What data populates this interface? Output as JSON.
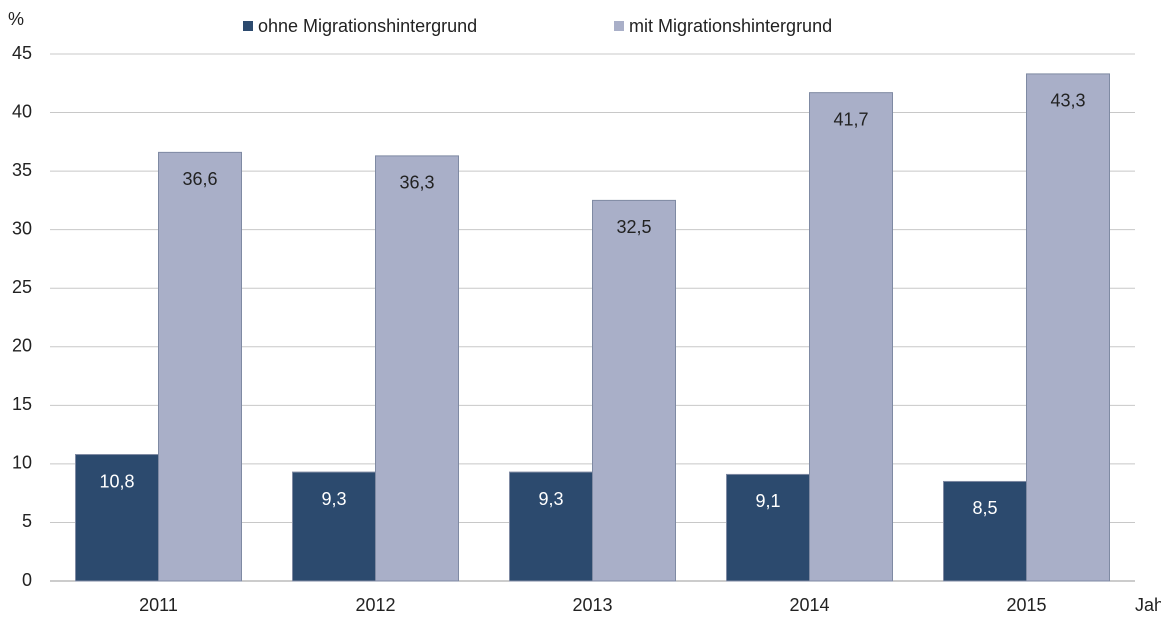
{
  "chart_data": {
    "type": "bar",
    "y_label": "%",
    "x_label": "Jahr",
    "categories": [
      "2011",
      "2012",
      "2013",
      "2014",
      "2015"
    ],
    "series": [
      {
        "name": "ohne Migrationshintergrund",
        "color": "#2c4a6e",
        "values": [
          10.8,
          9.3,
          9.3,
          9.1,
          8.5
        ],
        "value_labels": [
          "10,8",
          "9,3",
          "9,3",
          "9,1",
          "8,5"
        ]
      },
      {
        "name": "mit Migrationshintergrund",
        "color": "#a9afc8",
        "values": [
          36.6,
          36.3,
          32.5,
          41.7,
          43.3
        ],
        "value_labels": [
          "36,6",
          "36,3",
          "32,5",
          "41,7",
          "43,3"
        ]
      }
    ],
    "ylim": [
      0,
      45
    ],
    "yticks": [
      0,
      5,
      10,
      15,
      20,
      25,
      30,
      35,
      40,
      45
    ],
    "grid": true,
    "legend": "top"
  }
}
